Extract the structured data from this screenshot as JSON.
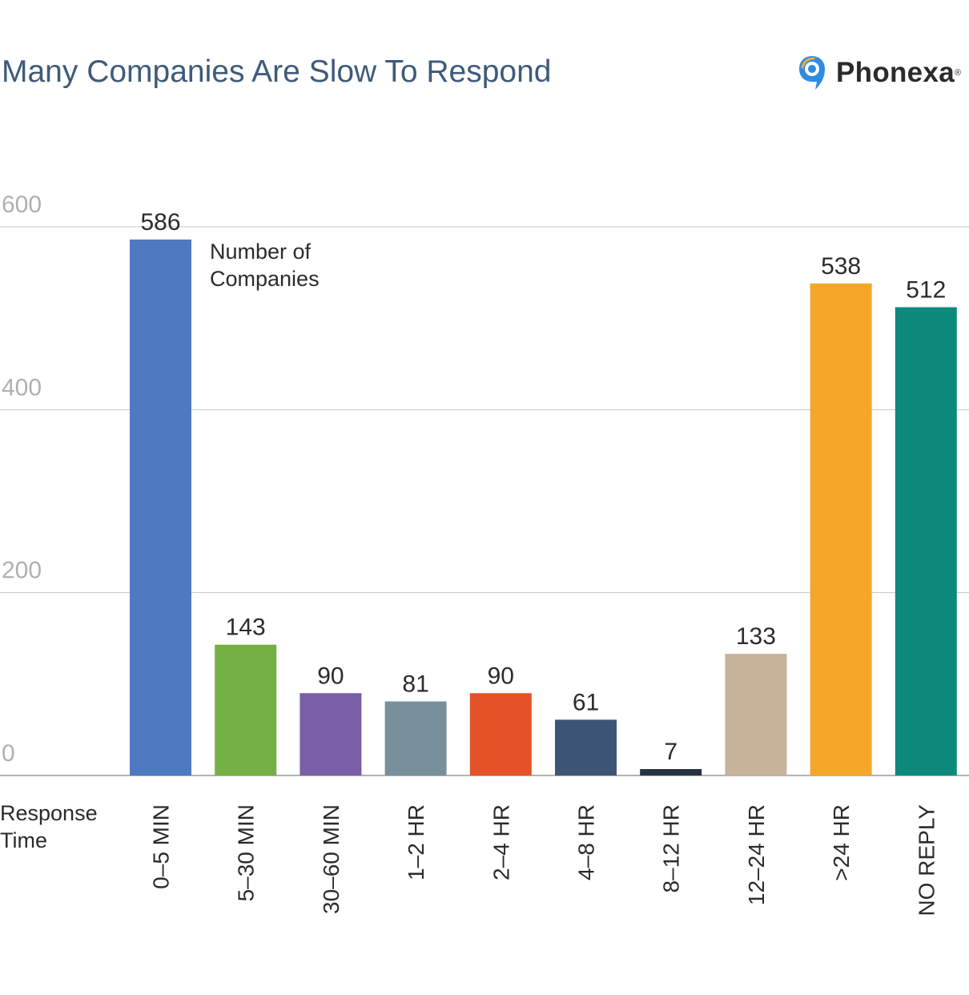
{
  "header": {
    "title": "Many Companies Are Slow To Respond",
    "brand": "Phonexa",
    "brand_mark": "®"
  },
  "chart_data": {
    "type": "bar",
    "title": "Many Companies Are Slow To Respond",
    "ylabel": "Number of Companies",
    "xlabel": "Response Time",
    "ylabel_lines": [
      "Number of",
      "Companies"
    ],
    "xlabel_lines": [
      "Response",
      "Time"
    ],
    "categories": [
      "0–5 MIN",
      "5–30 MIN",
      "30–60 MIN",
      "1–2 HR",
      "2–4 HR",
      "4–8 HR",
      "8–12 HR",
      "12–24 HR",
      ">24 HR",
      "NO REPLY"
    ],
    "values": [
      586,
      143,
      90,
      81,
      90,
      61,
      7,
      133,
      538,
      512
    ],
    "colors": [
      "#4e7ac0",
      "#74b043",
      "#7a5ea8",
      "#778f9b",
      "#e35326",
      "#3c5577",
      "#26323f",
      "#c7b29a",
      "#f4a629",
      "#0b8a7b"
    ],
    "ylim": [
      0,
      600
    ],
    "yticks": [
      0,
      200,
      400,
      600
    ],
    "grid": true
  }
}
